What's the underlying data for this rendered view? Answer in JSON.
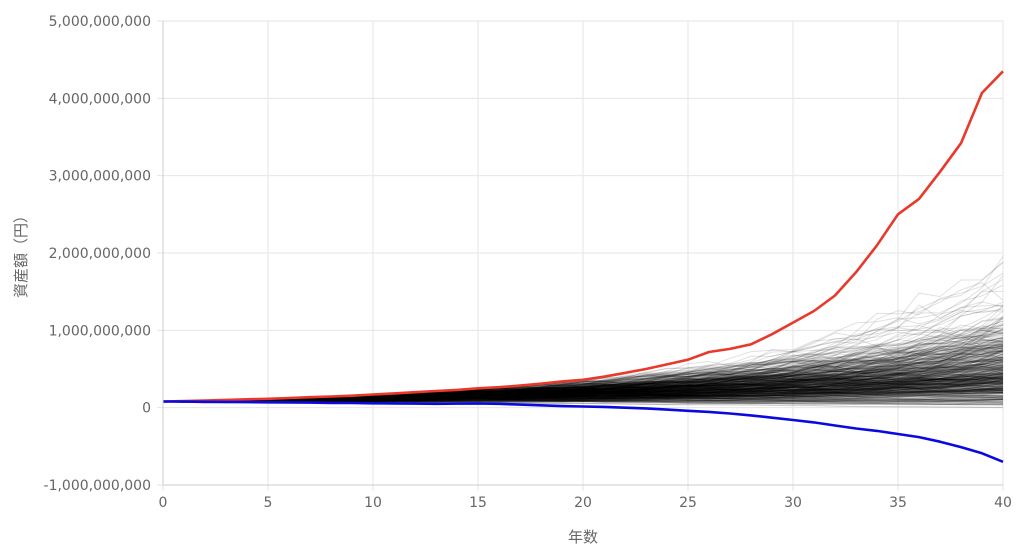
{
  "chart_data": {
    "type": "line",
    "xlabel": "年数",
    "ylabel": "資産額（円）",
    "xlim": [
      0,
      40
    ],
    "ylim": [
      -1000000000,
      5000000000
    ],
    "x_ticks": [
      0,
      5,
      10,
      15,
      20,
      25,
      30,
      35,
      40
    ],
    "x_tick_labels": [
      "0",
      "5",
      "10",
      "15",
      "20",
      "25",
      "30",
      "35",
      "40"
    ],
    "y_ticks": [
      -1000000000,
      0,
      1000000000,
      2000000000,
      3000000000,
      4000000000,
      5000000000
    ],
    "y_tick_labels": [
      "-1,000,000,000",
      "0",
      "1,000,000,000",
      "2,000,000,000",
      "3,000,000,000",
      "4,000,000,000",
      "5,000,000,000"
    ],
    "grid": true,
    "legend": "none",
    "colors": {
      "max_series": "#e8392b",
      "min_series": "#0a0ae0",
      "simulations": "#000000",
      "grid": "#e6e6e6"
    },
    "simulation_count": 500,
    "simulation_start": 80000000,
    "series": [
      {
        "values": [
          [
            0,
            80000000
          ],
          [
            1,
            85000000
          ],
          [
            2,
            92000000
          ],
          [
            3,
            100000000
          ],
          [
            4,
            108000000
          ],
          [
            5,
            115000000
          ],
          [
            6,
            125000000
          ],
          [
            7,
            135000000
          ],
          [
            8,
            145000000
          ],
          [
            9,
            155000000
          ],
          [
            10,
            170000000
          ],
          [
            11,
            185000000
          ],
          [
            12,
            200000000
          ],
          [
            13,
            215000000
          ],
          [
            14,
            230000000
          ],
          [
            15,
            250000000
          ],
          [
            16,
            265000000
          ],
          [
            17,
            285000000
          ],
          [
            18,
            310000000
          ],
          [
            19,
            340000000
          ],
          [
            20,
            360000000
          ],
          [
            21,
            400000000
          ],
          [
            22,
            450000000
          ],
          [
            23,
            500000000
          ],
          [
            24,
            560000000
          ],
          [
            25,
            620000000
          ],
          [
            26,
            720000000
          ],
          [
            27,
            760000000
          ],
          [
            28,
            820000000
          ],
          [
            29,
            950000000
          ],
          [
            30,
            1100000000
          ],
          [
            31,
            1250000000
          ],
          [
            32,
            1450000000
          ],
          [
            33,
            1750000000
          ],
          [
            34,
            2100000000
          ],
          [
            35,
            2500000000
          ],
          [
            36,
            2700000000
          ],
          [
            37,
            3050000000
          ],
          [
            38,
            3420000000
          ],
          [
            39,
            4070000000
          ],
          [
            40,
            4350000000
          ]
        ]
      },
      {
        "values": [
          [
            0,
            80000000
          ],
          [
            1,
            78000000
          ],
          [
            2,
            76000000
          ],
          [
            3,
            74000000
          ],
          [
            4,
            72000000
          ],
          [
            5,
            70000000
          ],
          [
            6,
            68000000
          ],
          [
            7,
            65000000
          ],
          [
            8,
            62000000
          ],
          [
            9,
            60000000
          ],
          [
            10,
            57000000
          ],
          [
            11,
            55000000
          ],
          [
            12,
            52000000
          ],
          [
            13,
            50000000
          ],
          [
            14,
            52000000
          ],
          [
            15,
            55000000
          ],
          [
            16,
            50000000
          ],
          [
            17,
            40000000
          ],
          [
            18,
            30000000
          ],
          [
            19,
            20000000
          ],
          [
            20,
            15000000
          ],
          [
            21,
            10000000
          ],
          [
            22,
            0
          ],
          [
            23,
            -10000000
          ],
          [
            24,
            -25000000
          ],
          [
            25,
            -40000000
          ],
          [
            26,
            -55000000
          ],
          [
            27,
            -75000000
          ],
          [
            28,
            -100000000
          ],
          [
            29,
            -130000000
          ],
          [
            30,
            -160000000
          ],
          [
            31,
            -190000000
          ],
          [
            32,
            -230000000
          ],
          [
            33,
            -270000000
          ],
          [
            34,
            -300000000
          ],
          [
            35,
            -340000000
          ],
          [
            36,
            -380000000
          ],
          [
            37,
            -440000000
          ],
          [
            38,
            -510000000
          ],
          [
            39,
            -590000000
          ],
          [
            40,
            -700000000
          ]
        ]
      }
    ]
  }
}
